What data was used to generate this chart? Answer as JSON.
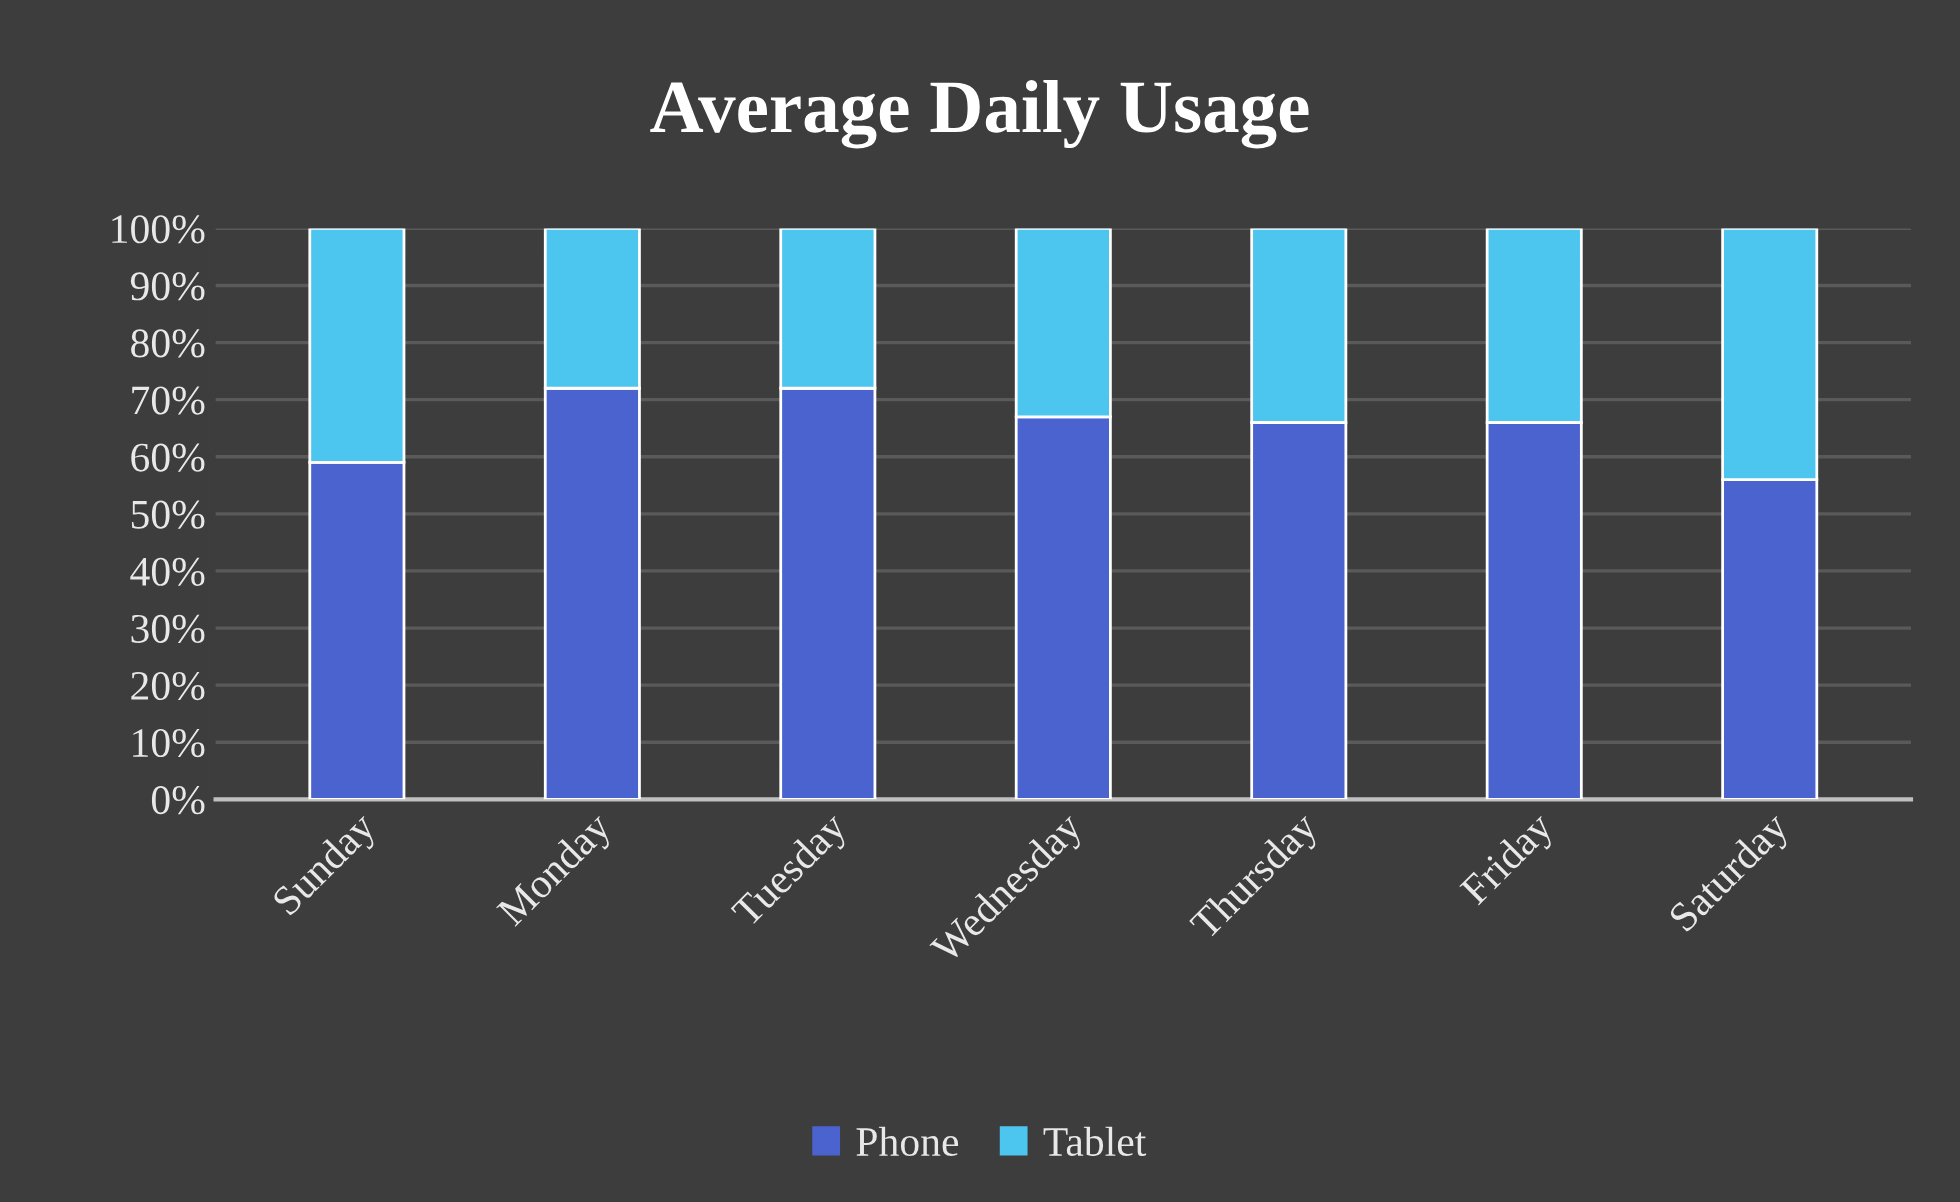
{
  "chart_data": {
    "type": "bar",
    "title": "Average Daily Usage",
    "stacked": true,
    "categories": [
      "Sunday",
      "Monday",
      "Tuesday",
      "Wednesday",
      "Thursday",
      "Friday",
      "Saturday"
    ],
    "series": [
      {
        "name": "Phone",
        "color": "#4a63cf",
        "values": [
          59,
          72,
          72,
          67,
          66,
          66,
          56
        ]
      },
      {
        "name": "Tablet",
        "color": "#4cc6ee",
        "values": [
          41,
          28,
          28,
          33,
          34,
          34,
          44
        ]
      }
    ],
    "ylim": [
      0,
      100
    ],
    "yticks": [
      {
        "value": 0,
        "label": "0%"
      },
      {
        "value": 10,
        "label": "10%"
      },
      {
        "value": 20,
        "label": "20%"
      },
      {
        "value": 30,
        "label": "30%"
      },
      {
        "value": 40,
        "label": "40%"
      },
      {
        "value": 50,
        "label": "50%"
      },
      {
        "value": 60,
        "label": "60%"
      },
      {
        "value": 70,
        "label": "70%"
      },
      {
        "value": 80,
        "label": "80%"
      },
      {
        "value": 90,
        "label": "90%"
      },
      {
        "value": 100,
        "label": "100%"
      }
    ],
    "grid": "y",
    "legend": "bottom"
  }
}
